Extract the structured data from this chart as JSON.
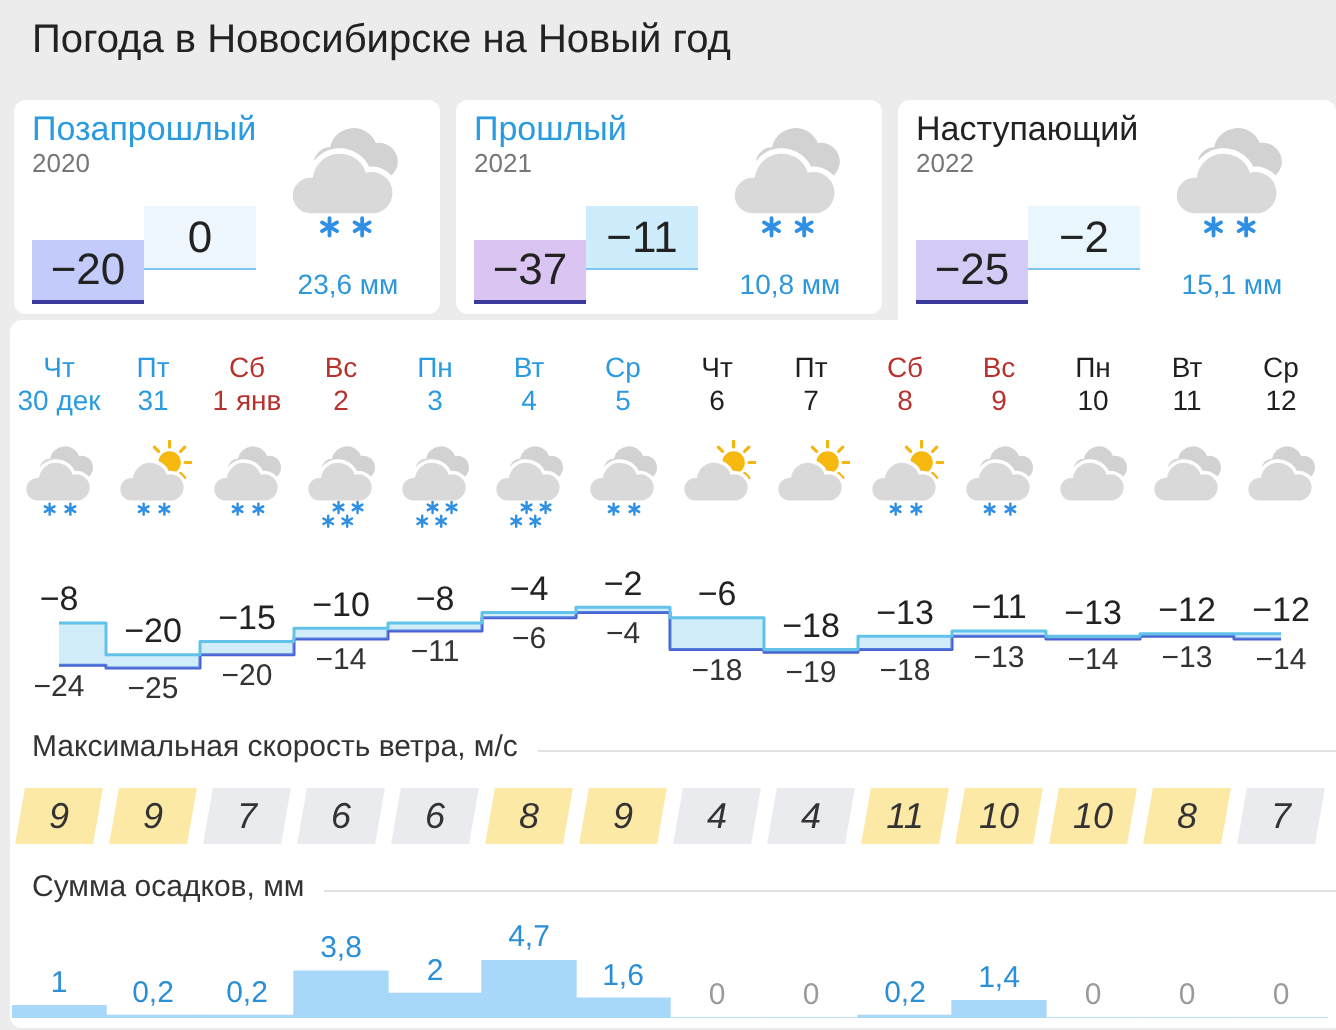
{
  "chart_data": [
    {
      "type": "other",
      "title": "Погода в Новосибирске на Новый год",
      "annotations": [
        "Позапрошлый",
        "2020",
        "−20",
        "0",
        "23,6 мм",
        "Прошлый",
        "2021",
        "−37",
        "−11",
        "10,8 мм",
        "Наступающий",
        "2022",
        "−25",
        "−2",
        "15,1 мм"
      ]
    },
    {
      "type": "step",
      "categories": [
        "Чт\n30 дек",
        "Пт\n31",
        "Сб\n1 янв",
        "Вс\n2",
        "Пн\n3",
        "Вт\n4",
        "Ср\n5",
        "Чт\n6",
        "Пт\n7",
        "Сб\n8",
        "Вс\n9",
        "Пн\n10",
        "Вт\n11",
        "Ср\n12"
      ],
      "series": [
        {
          "color": "#62c2ea",
          "values": [
            -8,
            -20,
            -15,
            -10,
            -8,
            -4,
            -2,
            -6,
            -18,
            -13,
            -11,
            -13,
            -12,
            -12
          ],
          "value_labels": [
            "−8",
            "−20",
            "−15",
            "−10",
            "−8",
            "−4",
            "−2",
            "−6",
            "−18",
            "−13",
            "−11",
            "−13",
            "−12",
            "−12"
          ]
        },
        {
          "color": "#4a5fd3",
          "values": [
            -24,
            -25,
            -20,
            -14,
            -11,
            -6,
            -4,
            -18,
            -19,
            -18,
            -13,
            -14,
            -13,
            -14
          ],
          "value_labels": [
            "−24",
            "−25",
            "−20",
            "−14",
            "−11",
            "−6",
            "−4",
            "−18",
            "−19",
            "−18",
            "−13",
            "−14",
            "−13",
            "−14"
          ]
        }
      ],
      "tick_labels": "x"
    },
    {
      "type": "other",
      "title": "Максимальная скорость ветра, м/с",
      "categories": [
        null,
        null,
        null,
        null,
        null,
        null,
        null,
        null,
        null,
        null,
        null,
        null,
        null,
        null
      ],
      "values": [
        9,
        9,
        7,
        6,
        6,
        8,
        9,
        4,
        4,
        11,
        10,
        10,
        8,
        7
      ],
      "colors": [
        "#fde9a6",
        "#fde9a6",
        "#e9ebee",
        "#e9ebee",
        "#e9ebee",
        "#fde9a6",
        "#fde9a6",
        "#e9ebee",
        "#e9ebee",
        "#fde9a6",
        "#fde9a6",
        "#fde9a6",
        "#fde9a6",
        "#e9ebee"
      ],
      "data_labels": true
    },
    {
      "type": "bar",
      "title": "Сумма осадков, мм",
      "categories": [
        null,
        null,
        null,
        null,
        null,
        null,
        null,
        null,
        null,
        null,
        null,
        null,
        null,
        null
      ],
      "values": [
        1,
        0.2,
        0.2,
        3.8,
        2,
        4.7,
        1.6,
        0,
        0,
        0.2,
        1.4,
        0,
        0,
        0
      ],
      "value_labels": [
        "1",
        "0,2",
        "0,2",
        "3,8",
        "2",
        "4,7",
        "1,6",
        "0",
        "0",
        "0,2",
        "1,4",
        "0",
        "0",
        "0"
      ],
      "color": "#a7d8fa",
      "tick_labels": false
    }
  ]
}
